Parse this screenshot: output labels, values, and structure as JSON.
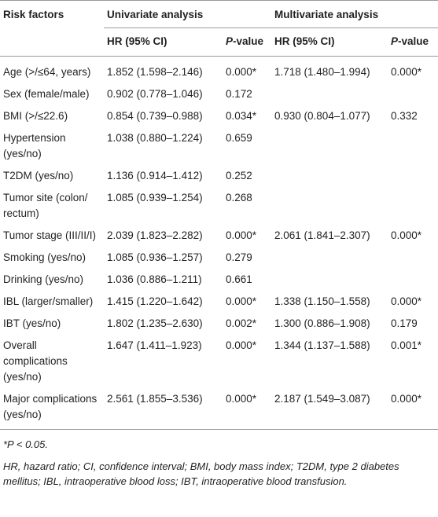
{
  "table": {
    "header": [
      "Risk factors",
      "Univariate analysis",
      "Multivariate analysis"
    ],
    "subheader": [
      "HR (95% CI)",
      "P-value",
      "HR (95% CI)",
      "P-value"
    ],
    "rows": [
      [
        "Age (>/≤64, years)",
        "1.852 (1.598–2.146)",
        "0.000*",
        "1.718 (1.480–1.994)",
        "0.000*"
      ],
      [
        "Sex (female/male)",
        "0.902 (0.778–1.046)",
        "0.172",
        null,
        null
      ],
      [
        "BMI (>/≤22.6)",
        "0.854 (0.739–0.988)",
        "0.034*",
        "0.930 (0.804–1.077)",
        "0.332"
      ],
      [
        "Hypertension (yes/no)",
        "1.038 (0.880–1.224)",
        "0.659",
        null,
        null
      ],
      [
        "T2DM (yes/no)",
        "1.136 (0.914–1.412)",
        "0.252",
        null,
        null
      ],
      [
        "Tumor site (colon/ rectum)",
        "1.085 (0.939–1.254)",
        "0.268",
        null,
        null
      ],
      [
        "Tumor stage (III/II/I)",
        "2.039 (1.823–2.282)",
        "0.000*",
        "2.061 (1.841–2.307)",
        "0.000*"
      ],
      [
        "Smoking (yes/no)",
        "1.085 (0.936–1.257)",
        "0.279",
        null,
        null
      ],
      [
        "Drinking (yes/no)",
        "1.036 (0.886–1.211)",
        "0.661",
        null,
        null
      ],
      [
        "IBL (larger/smaller)",
        "1.415 (1.220–1.642)",
        "0.000*",
        "1.338 (1.150–1.558)",
        "0.000*"
      ],
      [
        "IBT (yes/no)",
        "1.802 (1.235–2.630)",
        "0.002*",
        "1.300 (0.886–1.908)",
        "0.179"
      ],
      [
        "Overall complications (yes/no)",
        "1.647 (1.411–1.923)",
        "0.000*",
        "1.344 (1.137–1.588)",
        "0.001*"
      ],
      [
        "Major complications (yes/no)",
        "2.561 (1.855–3.536)",
        "0.000*",
        "2.187 (1.549–3.087)",
        "0.000*"
      ]
    ],
    "notes": [
      "*P < 0.05.",
      "HR, hazard ratio; CI, confidence interval; BMI, body mass index; T2DM, type 2 diabetes mellitus; IBL, intraoperative blood loss; IBT, intraoperative blood transfusion."
    ]
  }
}
